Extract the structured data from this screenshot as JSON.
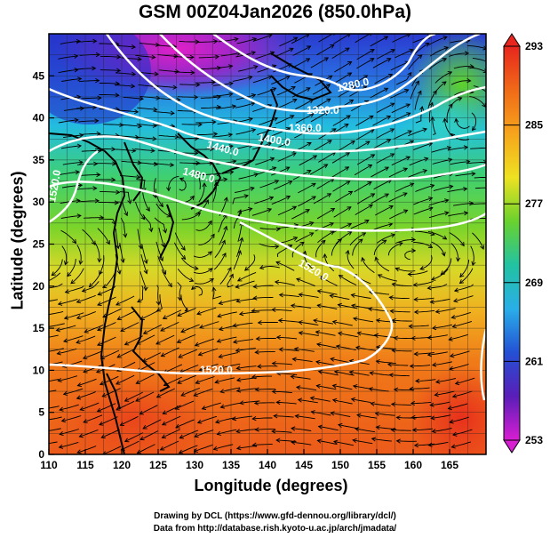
{
  "title": "GSM 00Z04Jan2026 (850.0hPa)",
  "x_axis": {
    "label": "Longitude (degrees)",
    "range": [
      110,
      170
    ],
    "ticks": [
      110,
      115,
      120,
      125,
      130,
      135,
      140,
      145,
      150,
      155,
      160,
      165
    ]
  },
  "y_axis": {
    "label": "Latitude  (degrees)",
    "range": [
      0,
      50
    ],
    "ticks": [
      0,
      5,
      10,
      15,
      20,
      25,
      30,
      35,
      40,
      45
    ]
  },
  "colorbar": {
    "range": [
      253,
      293
    ],
    "labels": [
      293,
      285,
      277,
      269,
      261,
      253
    ],
    "colors": [
      "#e8261e",
      "#f06a18",
      "#f6a51c",
      "#eee222",
      "#6ad22e",
      "#22c2a2",
      "#2aaee8",
      "#2450d4",
      "#5a1eb8",
      "#d81ed2"
    ]
  },
  "contours": [
    {
      "label": "1280.0"
    },
    {
      "label": "1320.0"
    },
    {
      "label": "1360.0"
    },
    {
      "label": "1400.0"
    },
    {
      "label": "1440.0"
    },
    {
      "label": "1480.0"
    },
    {
      "label": "1520.0"
    },
    {
      "label": "1520.0"
    },
    {
      "label": "1520.0"
    }
  ],
  "credits": {
    "line1": "Drawing by DCL (https://www.gfd-dennou.org/library/dcl/)",
    "line2": "Data from http://database.rish.kyoto-u.ac.jp/arch/jmadata/"
  }
}
